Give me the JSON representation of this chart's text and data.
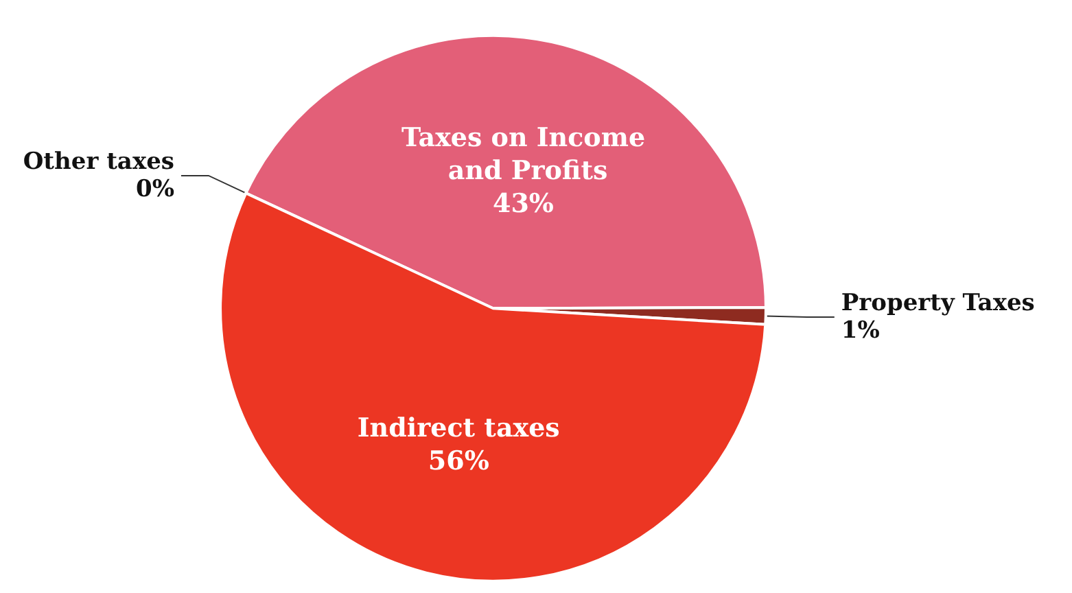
{
  "chart_data": {
    "type": "pie",
    "categories": [
      "Taxes on Income and Profits",
      "Property Taxes",
      "Indirect taxes",
      "Other taxes"
    ],
    "values": [
      43,
      1,
      56,
      0
    ],
    "colors": [
      "#e35f78",
      "#8e2b20",
      "#ec3623",
      "#c0392b"
    ],
    "value_labels": [
      "43%",
      "1%",
      "56%",
      "0%"
    ],
    "legend": false
  }
}
